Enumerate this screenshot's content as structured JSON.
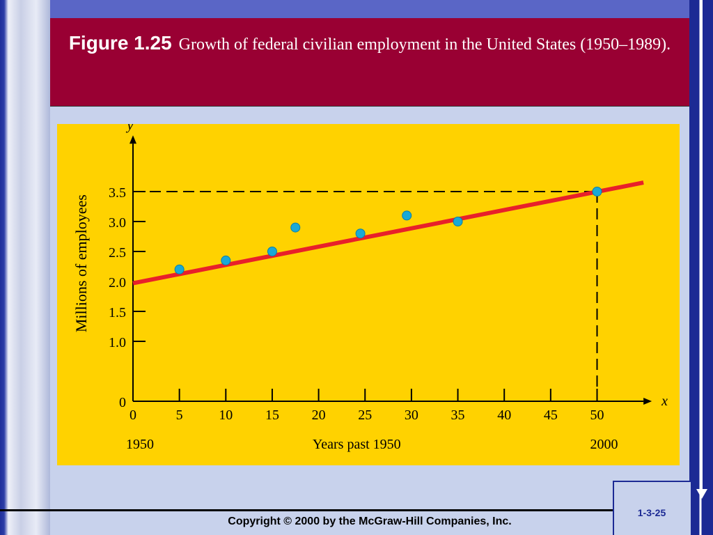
{
  "header": {
    "figure_label": "Figure 1.25",
    "caption": "Growth of federal civilian employment in the United States (1950–1989)."
  },
  "footer": {
    "copyright": "Copyright © 2000 by the McGraw-Hill Companies, Inc.",
    "slide_number": "1-3-25"
  },
  "colors": {
    "title_band": "#990033",
    "chart_background": "#ffd200",
    "trend_line": "#e8202a",
    "points": "#19a9d6"
  },
  "chart_data": {
    "type": "scatter",
    "title": "",
    "xlabel": "Years past 1950",
    "ylabel": "Millions of employees",
    "x_axis_name": "x",
    "y_axis_name": "y",
    "xlim": [
      0,
      55
    ],
    "ylim": [
      0,
      4.3
    ],
    "x_ticks": [
      0,
      5,
      10,
      15,
      20,
      25,
      30,
      35,
      40,
      45,
      50
    ],
    "y_ticks": [
      0,
      1.0,
      1.5,
      2.0,
      2.5,
      3.0,
      3.5
    ],
    "y_tick_labels": [
      "0",
      "1.0",
      "1.5",
      "2.0",
      "2.5",
      "3.0",
      "3.5"
    ],
    "x_extra_labels": [
      {
        "x": 0,
        "text": "1950"
      },
      {
        "x": 50,
        "text": "2000"
      }
    ],
    "points": [
      {
        "x": 5,
        "y": 2.2
      },
      {
        "x": 10,
        "y": 2.35
      },
      {
        "x": 15,
        "y": 2.5
      },
      {
        "x": 17.5,
        "y": 2.9
      },
      {
        "x": 24.5,
        "y": 2.8
      },
      {
        "x": 29.5,
        "y": 3.1
      },
      {
        "x": 35,
        "y": 3.0
      },
      {
        "x": 50,
        "y": 3.5
      }
    ],
    "trend_line": {
      "x": [
        0,
        55
      ],
      "y": [
        1.97,
        3.65
      ]
    },
    "reference_point": {
      "x": 50,
      "y": 3.5
    },
    "grid": false,
    "legend": false
  }
}
